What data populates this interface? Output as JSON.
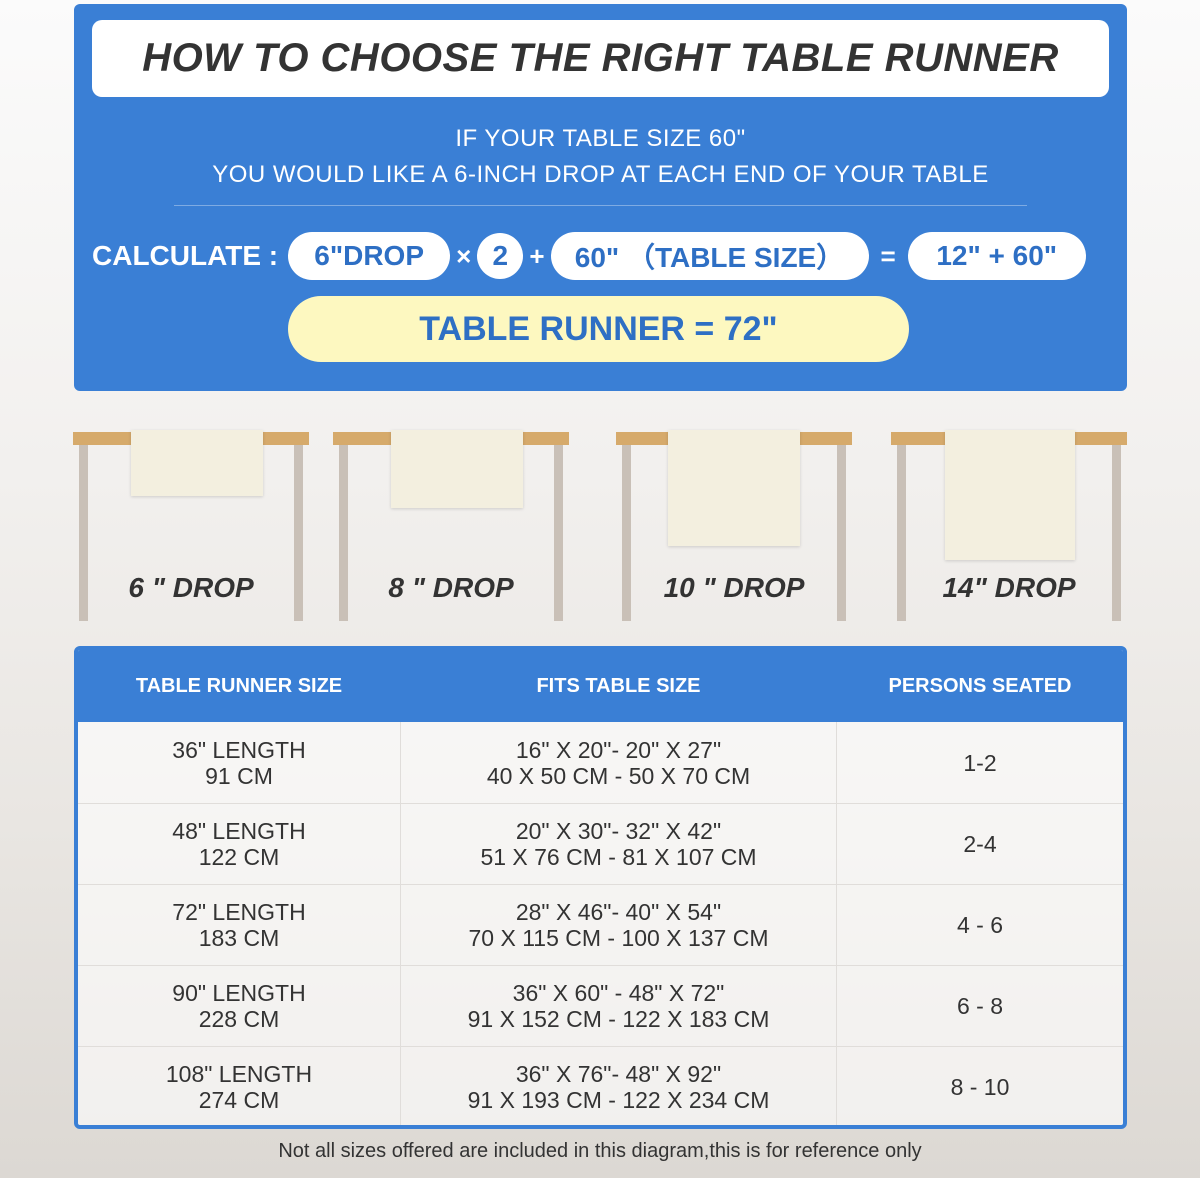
{
  "title": "HOW TO CHOOSE THE RIGHT TABLE RUNNER",
  "subtitle": [
    "IF YOUR TABLE SIZE 60\"",
    "YOU WOULD LIKE A 6-INCH DROP AT EACH END OF YOUR TABLE"
  ],
  "calc": {
    "label": "CALCULATE :",
    "drop": "6\"DROP",
    "times": "×",
    "multiplier": "2",
    "plus": "+",
    "table_size": "60\" （TABLE SIZE）",
    "equals": "=",
    "sum": "12\" + 60\"",
    "result": "TABLE RUNNER = 72\""
  },
  "drops": [
    "6 \" DROP",
    "8 \" DROP",
    "10 \" DROP",
    "14\" DROP"
  ],
  "table": {
    "headers": [
      "TABLE RUNNER SIZE",
      "FITS TABLE SIZE",
      "PERSONS SEATED"
    ],
    "rows": [
      {
        "size": [
          "36\" LENGTH",
          "91 CM"
        ],
        "fits": [
          "16\" X 20\"- 20\" X 27\"",
          "40 X 50 CM - 50 X 70 CM"
        ],
        "persons": "1-2"
      },
      {
        "size": [
          "48\" LENGTH",
          "122 CM"
        ],
        "fits": [
          "20\" X 30\"- 32\" X 42\"",
          "51 X 76 CM - 81 X 107 CM"
        ],
        "persons": "2-4"
      },
      {
        "size": [
          "72\" LENGTH",
          "183 CM"
        ],
        "fits": [
          "28\" X 46\"- 40\" X 54\"",
          "70 X 115 CM - 100 X 137 CM"
        ],
        "persons": "4 - 6"
      },
      {
        "size": [
          "90\" LENGTH",
          "228 CM"
        ],
        "fits": [
          "36\" X 60\" - 48\" X 72\"",
          "91 X 152 CM - 122 X 183 CM"
        ],
        "persons": "6 - 8"
      },
      {
        "size": [
          "108\" LENGTH",
          "274 CM"
        ],
        "fits": [
          "36\" X 76\"- 48\" X 92\"",
          "91 X 193 CM - 122 X 234 CM"
        ],
        "persons": "8 - 10"
      }
    ]
  },
  "footnote": "Not all sizes offered are included in this diagram,this is for reference only",
  "colors": {
    "panel": "#3a7fd5",
    "result_bg": "#fdf8c0",
    "accent_text": "#2e6fc4",
    "table_top": "#d6aa6b"
  }
}
